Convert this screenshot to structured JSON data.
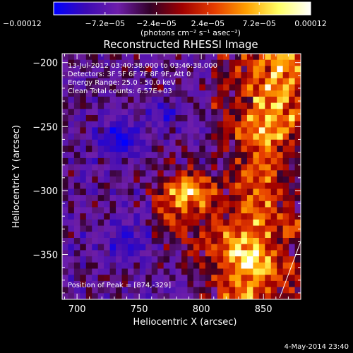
{
  "chart_data": {
    "type": "heatmap",
    "title": "Reconstructed RHESSI Image",
    "xlabel": "Heliocentric X (arcsec)",
    "ylabel": "Heliocentric Y (arcsec)",
    "xlim": [
      688,
      880
    ],
    "ylim": [
      -385,
      -193
    ],
    "x_ticks": [
      700,
      750,
      800,
      850
    ],
    "x_tick_labels": [
      "700",
      "750",
      "800",
      "850"
    ],
    "y_ticks": [
      -200,
      -250,
      -300,
      -350
    ],
    "y_tick_labels": [
      "−200",
      "−250",
      "−300",
      "−350"
    ],
    "colorbar": {
      "min": -0.00012,
      "max": 0.00012,
      "tick_values": [
        -0.00012,
        -7.2e-05,
        -2.4e-05,
        2.4e-05,
        7.2e-05,
        0.00012
      ],
      "tick_labels": [
        "−0.00012",
        "−7.2e−05",
        "−2.4e−05",
        "2.4e−05",
        "7.2e−05",
        "0.00012"
      ],
      "units_label": "(photons cm⁻² s⁻¹ asec⁻²)",
      "colors": [
        "#0000ff",
        "#3c0ab4",
        "#6e1eaa",
        "#320028",
        "#a00000",
        "#e63c00",
        "#ffa000",
        "#ffff64",
        "#ffffff"
      ],
      "position": "top"
    },
    "annotations": {
      "time": "13-Jul-2012 03:40:38.000 to 03:46:38.000",
      "detectors": "Detectors: 3F 5F 6F 7F 8F 9F, Att 0",
      "energy": "Energy Range: 25.0 - 50.0 keV",
      "clean": "Clean    Total counts: 6.57E+03",
      "peak": "Position of Peak = [874,-329]"
    },
    "peak_position": [
      874,
      -329
    ],
    "features": {
      "limb_arc_brightness": "bright",
      "central_ridge_brightness": "bright",
      "background": "purple noise with blue patches"
    },
    "timestamp": "4-May-2014 23:40"
  }
}
